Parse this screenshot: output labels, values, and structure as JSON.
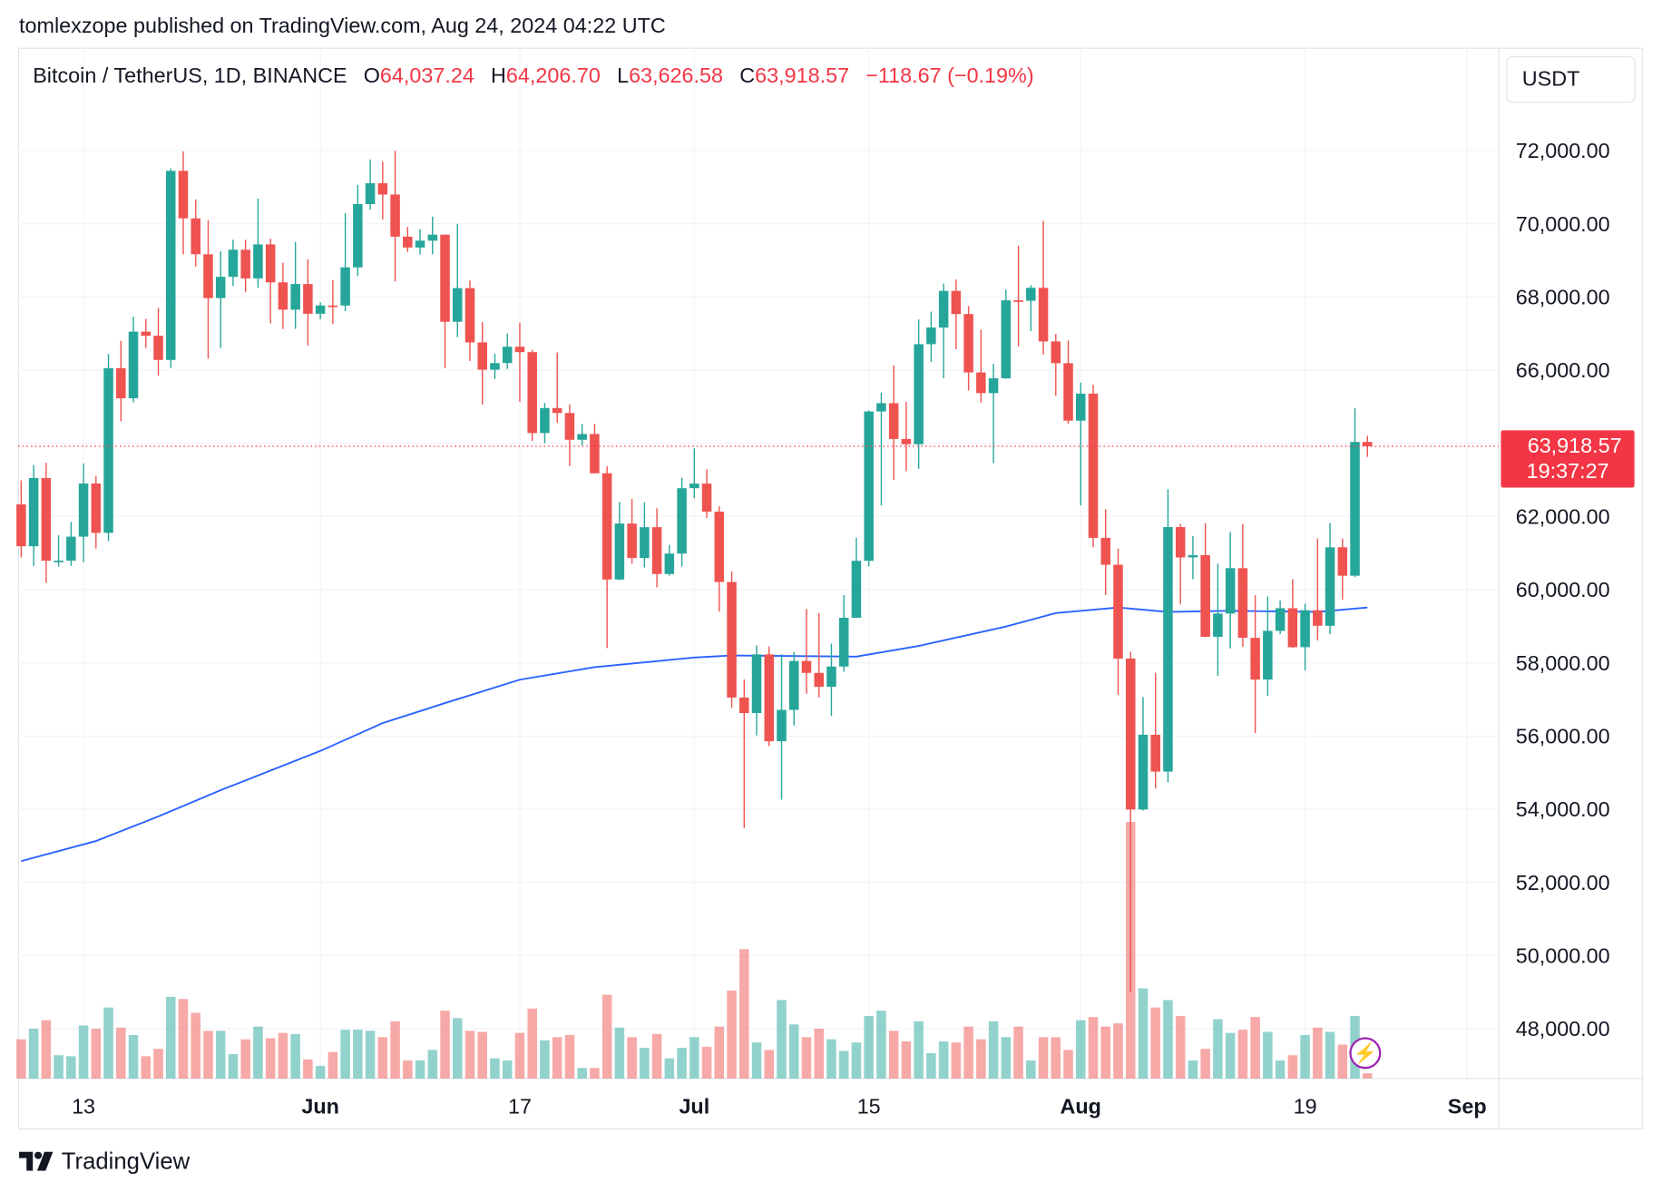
{
  "header": {
    "published": "tomlexzope published on TradingView.com, Aug 24, 2024 04:22 UTC",
    "symbol": "Bitcoin / TetherUS, 1D, BINANCE",
    "o_label": "O",
    "o_value": "64,037.24",
    "h_label": "H",
    "h_value": "64,206.70",
    "l_label": "L",
    "l_value": "63,626.58",
    "c_label": "C",
    "c_value": "63,918.57",
    "change": "−118.67 (−0.19%)"
  },
  "currency_button": "USDT",
  "last_price": {
    "value": "63,918.57",
    "countdown": "19:37:27"
  },
  "branding": "TradingView",
  "icons": {
    "alert": "lightning-icon",
    "logo": "tradingview-logo-icon"
  },
  "colors": {
    "up": "#26a69a",
    "down": "#ef5350",
    "ma": "#2962ff",
    "last_price": "#f23645",
    "grid": "#f0f3fa"
  },
  "chart_data": {
    "type": "candlestick",
    "ylim": [
      47000,
      73500
    ],
    "grid": true,
    "y_ticks": [
      "72,000.00",
      "70,000.00",
      "68,000.00",
      "66,000.00",
      "64,000.00",
      "62,000.00",
      "60,000.00",
      "58,000.00",
      "56,000.00",
      "54,000.00",
      "52,000.00",
      "50,000.00",
      "48,000.00"
    ],
    "y_tick_values": [
      72000,
      70000,
      68000,
      66000,
      64000,
      62000,
      60000,
      58000,
      56000,
      54000,
      52000,
      50000,
      48000
    ],
    "x_ticks": [
      {
        "label": "13",
        "date": "2024-05-13",
        "bold": false
      },
      {
        "label": "Jun",
        "date": "2024-06-01",
        "bold": true
      },
      {
        "label": "17",
        "date": "2024-06-17",
        "bold": false
      },
      {
        "label": "Jul",
        "date": "2024-07-01",
        "bold": true
      },
      {
        "label": "15",
        "date": "2024-07-15",
        "bold": false
      },
      {
        "label": "Aug",
        "date": "2024-08-01",
        "bold": true
      },
      {
        "label": "19",
        "date": "2024-08-19",
        "bold": false
      },
      {
        "label": "Sep",
        "date": "2024-09-01",
        "bold": true
      }
    ],
    "last_close": 63918.57,
    "columns": [
      "date",
      "open",
      "high",
      "low",
      "close",
      "volume_k"
    ],
    "candles": [
      [
        "2024-05-08",
        62330,
        62986,
        60877,
        61187,
        18.5
      ],
      [
        "2024-05-09",
        61187,
        63404,
        60648,
        63049,
        23.5
      ],
      [
        "2024-05-10",
        63049,
        63469,
        60187,
        60792,
        27.5
      ],
      [
        "2024-05-11",
        60792,
        61490,
        60631,
        60793,
        11
      ],
      [
        "2024-05-12",
        60793,
        61850,
        60650,
        61448,
        10.5
      ],
      [
        "2024-05-13",
        61448,
        63450,
        60750,
        62901,
        25
      ],
      [
        "2024-05-14",
        62901,
        63110,
        61123,
        61552,
        23.5
      ],
      [
        "2024-05-15",
        61552,
        66444,
        61330,
        66054,
        33.5
      ],
      [
        "2024-05-16",
        66054,
        66800,
        64600,
        65231,
        24
      ],
      [
        "2024-05-17",
        65231,
        67459,
        65119,
        67051,
        20.5
      ],
      [
        "2024-05-18",
        67051,
        67400,
        66600,
        66940,
        10.5
      ],
      [
        "2024-05-19",
        66940,
        67700,
        65857,
        66278,
        14
      ],
      [
        "2024-05-20",
        66278,
        71515,
        66060,
        71446,
        38.5
      ],
      [
        "2024-05-21",
        71446,
        71979,
        69162,
        70148,
        37.5
      ],
      [
        "2024-05-22",
        70148,
        70666,
        68833,
        69166,
        31
      ],
      [
        "2024-05-23",
        69166,
        70096,
        66312,
        67969,
        22.5
      ],
      [
        "2024-05-24",
        67969,
        69250,
        66600,
        68549,
        22.5
      ],
      [
        "2024-05-25",
        68549,
        69562,
        68300,
        69290,
        11.5
      ],
      [
        "2024-05-26",
        69290,
        69562,
        68128,
        68507,
        18.5
      ],
      [
        "2024-05-27",
        68507,
        70687,
        68250,
        69436,
        24.5
      ],
      [
        "2024-05-28",
        69436,
        69591,
        67277,
        68398,
        19
      ],
      [
        "2024-05-29",
        68398,
        68935,
        67124,
        67652,
        21.5
      ],
      [
        "2024-05-30",
        67652,
        69500,
        67128,
        68352,
        21
      ],
      [
        "2024-05-31",
        68352,
        69034,
        66670,
        67540,
        9
      ],
      [
        "2024-06-01",
        67540,
        67856,
        67387,
        67766,
        6
      ],
      [
        "2024-06-02",
        67766,
        68460,
        67257,
        67765,
        12.5
      ],
      [
        "2024-06-03",
        67765,
        70288,
        67612,
        68809,
        23
      ],
      [
        "2024-06-04",
        68809,
        71063,
        68567,
        70537,
        23
      ],
      [
        "2024-06-05",
        70537,
        71758,
        70383,
        71108,
        22.5
      ],
      [
        "2024-06-06",
        71108,
        71700,
        70117,
        70799,
        19.5
      ],
      [
        "2024-06-07",
        70799,
        71997,
        68420,
        69648,
        27
      ],
      [
        "2024-06-08",
        69648,
        69914,
        69230,
        69351,
        8.5
      ],
      [
        "2024-06-09",
        69351,
        69850,
        69160,
        69538,
        8.5
      ],
      [
        "2024-06-10",
        69538,
        70195,
        69164,
        69702,
        13.5
      ],
      [
        "2024-06-11",
        69702,
        69708,
        66051,
        67322,
        32
      ],
      [
        "2024-06-12",
        67322,
        69999,
        66902,
        68241,
        28.5
      ],
      [
        "2024-06-13",
        68241,
        68449,
        66251,
        66757,
        22.5
      ],
      [
        "2024-06-14",
        66757,
        67315,
        65056,
        66011,
        22
      ],
      [
        "2024-06-15",
        66011,
        66445,
        65758,
        66192,
        9.5
      ],
      [
        "2024-06-16",
        66192,
        66998,
        66034,
        66639,
        8.5
      ],
      [
        "2024-06-17",
        66639,
        67298,
        65130,
        66491,
        21.5
      ],
      [
        "2024-06-18",
        66491,
        66556,
        64066,
        64280,
        33
      ],
      [
        "2024-06-19",
        64280,
        65104,
        64000,
        64964,
        18
      ],
      [
        "2024-06-20",
        64964,
        66482,
        64560,
        64828,
        19.5
      ],
      [
        "2024-06-21",
        64828,
        65066,
        63379,
        64096,
        20.5
      ],
      [
        "2024-06-22",
        64096,
        64526,
        63944,
        64253,
        5
      ],
      [
        "2024-06-23",
        64253,
        64525,
        63178,
        63181,
        5
      ],
      [
        "2024-06-24",
        63181,
        63370,
        58402,
        60277,
        39.5
      ],
      [
        "2024-06-25",
        60277,
        62400,
        60260,
        61806,
        24
      ],
      [
        "2024-06-26",
        61806,
        62480,
        60712,
        60864,
        19.5
      ],
      [
        "2024-06-27",
        60864,
        62388,
        60606,
        61707,
        14.5
      ],
      [
        "2024-06-28",
        61707,
        62225,
        60063,
        60427,
        21
      ],
      [
        "2024-06-29",
        60427,
        61224,
        60383,
        60986,
        9.5
      ],
      [
        "2024-06-30",
        60986,
        63058,
        60632,
        62772,
        14.5
      ],
      [
        "2024-07-01",
        62772,
        63861,
        62497,
        62899,
        19.5
      ],
      [
        "2024-07-02",
        62899,
        63288,
        61959,
        62133,
        15
      ],
      [
        "2024-07-03",
        62133,
        62285,
        59400,
        60208,
        24.5
      ],
      [
        "2024-07-04",
        60208,
        60498,
        56771,
        57050,
        41.5
      ],
      [
        "2024-07-05",
        57050,
        57546,
        53485,
        56628,
        61
      ],
      [
        "2024-07-06",
        56628,
        58475,
        56016,
        58230,
        17
      ],
      [
        "2024-07-07",
        58230,
        58449,
        55724,
        55857,
        13.5
      ],
      [
        "2024-07-08",
        55857,
        58236,
        54260,
        56714,
        37
      ],
      [
        "2024-07-09",
        56714,
        58296,
        56289,
        58051,
        25.5
      ],
      [
        "2024-07-10",
        58051,
        59470,
        57157,
        57725,
        19.5
      ],
      [
        "2024-07-11",
        57725,
        59359,
        57052,
        57344,
        23.5
      ],
      [
        "2024-07-12",
        57344,
        58526,
        56552,
        57899,
        18.5
      ],
      [
        "2024-07-13",
        57899,
        59850,
        57756,
        59231,
        13
      ],
      [
        "2024-07-14",
        59231,
        61420,
        59230,
        60787,
        17
      ],
      [
        "2024-07-15",
        60787,
        64900,
        60633,
        64870,
        29.5
      ],
      [
        "2024-07-16",
        64870,
        65388,
        62300,
        65097,
        32
      ],
      [
        "2024-07-17",
        65097,
        66128,
        63000,
        64118,
        22.5
      ],
      [
        "2024-07-18",
        64118,
        65133,
        63238,
        63974,
        17.5
      ],
      [
        "2024-07-19",
        63974,
        67386,
        63300,
        66709,
        27
      ],
      [
        "2024-07-20",
        66709,
        67598,
        66222,
        67164,
        12
      ],
      [
        "2024-07-21",
        67164,
        68366,
        65777,
        68165,
        17.5
      ],
      [
        "2024-07-22",
        68165,
        68480,
        66573,
        67532,
        17
      ],
      [
        "2024-07-23",
        67532,
        67750,
        65441,
        65936,
        24.5
      ],
      [
        "2024-07-24",
        65936,
        67102,
        65111,
        65372,
        18.5
      ],
      [
        "2024-07-25",
        65372,
        66175,
        63456,
        65777,
        27
      ],
      [
        "2024-07-26",
        65777,
        68200,
        65761,
        67907,
        19.5
      ],
      [
        "2024-07-27",
        67907,
        69399,
        66650,
        67896,
        24.5
      ],
      [
        "2024-07-28",
        67896,
        68318,
        67066,
        68249,
        8.5
      ],
      [
        "2024-07-29",
        68249,
        70079,
        66428,
        66784,
        19.5
      ],
      [
        "2024-07-30",
        66784,
        66987,
        65302,
        66189,
        19.5
      ],
      [
        "2024-07-31",
        66189,
        66810,
        64532,
        64619,
        13.5
      ],
      [
        "2024-08-01",
        64619,
        65659,
        62302,
        65357,
        27.5
      ],
      [
        "2024-08-02",
        65357,
        65596,
        61160,
        61415,
        29
      ],
      [
        "2024-08-03",
        61415,
        62198,
        59850,
        60680,
        24.5
      ],
      [
        "2024-08-04",
        60680,
        61117,
        57122,
        58116,
        26
      ],
      [
        "2024-08-05",
        58116,
        58305,
        49000,
        53991,
        121
      ],
      [
        "2024-08-06",
        53991,
        57066,
        53962,
        56034,
        42.5
      ],
      [
        "2024-08-07",
        56034,
        57726,
        54568,
        55027,
        33.5
      ],
      [
        "2024-08-08",
        55027,
        62745,
        54730,
        61710,
        37
      ],
      [
        "2024-08-09",
        61710,
        61800,
        59600,
        60881,
        29.5
      ],
      [
        "2024-08-10",
        60881,
        61464,
        60287,
        60945,
        8.5
      ],
      [
        "2024-08-11",
        60945,
        61818,
        58700,
        58712,
        14
      ],
      [
        "2024-08-12",
        58712,
        60711,
        57642,
        59346,
        28
      ],
      [
        "2024-08-13",
        59346,
        61578,
        58392,
        60587,
        21.5
      ],
      [
        "2024-08-14",
        60587,
        61800,
        58433,
        58683,
        23
      ],
      [
        "2024-08-15",
        58683,
        59849,
        56078,
        57541,
        29
      ],
      [
        "2024-08-16",
        57541,
        59817,
        57098,
        58874,
        22
      ],
      [
        "2024-08-17",
        58874,
        59700,
        58785,
        59491,
        8.5
      ],
      [
        "2024-08-18",
        59491,
        60284,
        58408,
        58427,
        11
      ],
      [
        "2024-08-19",
        58427,
        59617,
        57787,
        59438,
        20.5
      ],
      [
        "2024-08-20",
        59438,
        61400,
        58610,
        59013,
        24
      ],
      [
        "2024-08-21",
        59013,
        61820,
        58783,
        61157,
        22
      ],
      [
        "2024-08-22",
        61157,
        61400,
        59724,
        60381,
        16
      ],
      [
        "2024-08-23",
        60381,
        64955,
        60345,
        64037,
        29.5
      ],
      [
        "2024-08-24",
        64037.24,
        64206.7,
        63626.58,
        63918.57,
        2.5
      ]
    ],
    "moving_average": [
      [
        "2024-05-08",
        52580
      ],
      [
        "2024-05-14",
        53130
      ],
      [
        "2024-05-19",
        53800
      ],
      [
        "2024-05-24",
        54520
      ],
      [
        "2024-06-01",
        55590
      ],
      [
        "2024-06-06",
        56350
      ],
      [
        "2024-06-11",
        56900
      ],
      [
        "2024-06-17",
        57540
      ],
      [
        "2024-06-23",
        57880
      ],
      [
        "2024-07-01",
        58145
      ],
      [
        "2024-07-04",
        58200
      ],
      [
        "2024-07-14",
        58170
      ],
      [
        "2024-07-19",
        58460
      ],
      [
        "2024-07-26",
        58990
      ],
      [
        "2024-07-30",
        59360
      ],
      [
        "2024-08-04",
        59510
      ],
      [
        "2024-08-08",
        59390
      ],
      [
        "2024-08-13",
        59420
      ],
      [
        "2024-08-20",
        59390
      ],
      [
        "2024-08-24",
        59510
      ]
    ]
  }
}
